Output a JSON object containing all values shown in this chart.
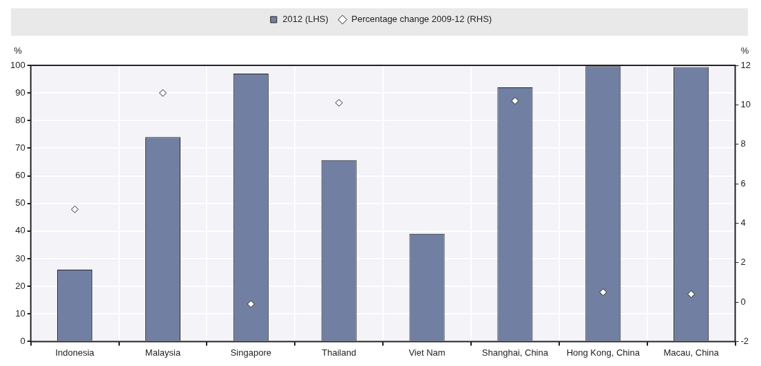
{
  "chart_data": {
    "type": "bar",
    "categories": [
      "Indonesia",
      "Malaysia",
      "Singapore",
      "Thailand",
      "Viet Nam",
      "Shanghai, China",
      "Hong Kong, China",
      "Macau, China"
    ],
    "series": [
      {
        "name": "2012 (LHS)",
        "color": "#717fa2",
        "values": [
          26,
          74,
          97,
          65.7,
          39,
          92,
          99.7,
          99.4
        ]
      },
      {
        "name": "Percentage change 2009-12 (RHS)",
        "type": "scatter",
        "axis": "y2",
        "color": "#ffffff",
        "values": [
          4.7,
          10.6,
          -0.1,
          10.1,
          null,
          10.2,
          0.5,
          0.4
        ]
      }
    ],
    "ylabel": "%",
    "y2label": "%",
    "ylim": [
      0,
      100
    ],
    "yticks": [
      0,
      10,
      20,
      30,
      40,
      50,
      60,
      70,
      80,
      90,
      100
    ],
    "y2lim": [
      -2,
      12
    ],
    "y2ticks": [
      -2,
      0,
      2,
      4,
      6,
      8,
      10,
      12
    ],
    "grid": true,
    "legend": "top",
    "marker": "diamond"
  }
}
